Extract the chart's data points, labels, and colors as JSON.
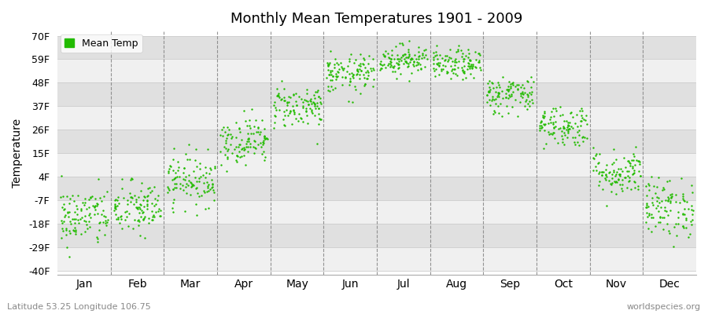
{
  "title": "Monthly Mean Temperatures 1901 - 2009",
  "ylabel": "Temperature",
  "xlabel_bottom_left": "Latitude 53.25 Longitude 106.75",
  "xlabel_bottom_right": "worldspecies.org",
  "legend_label": "Mean Temp",
  "dot_color": "#22bb00",
  "background_color": "#ffffff",
  "plot_bg_color": "#ffffff",
  "band_color_light": "#f0f0f0",
  "band_color_dark": "#e0e0e0",
  "yticks": [
    -40,
    -29,
    -18,
    -7,
    4,
    15,
    26,
    37,
    48,
    59,
    70
  ],
  "ytick_labels": [
    "-40F",
    "-29F",
    "-18F",
    "-7F",
    "4F",
    "15F",
    "26F",
    "37F",
    "48F",
    "59F",
    "70F"
  ],
  "ylim": [
    -42,
    72
  ],
  "months": [
    "Jan",
    "Feb",
    "Mar",
    "Apr",
    "May",
    "Jun",
    "Jul",
    "Aug",
    "Sep",
    "Oct",
    "Nov",
    "Dec"
  ],
  "n_years": 109,
  "monthly_means_F": [
    -14.8,
    -11.0,
    2.5,
    21.0,
    37.0,
    52.0,
    59.0,
    56.5,
    42.5,
    28.0,
    6.0,
    -10.5
  ],
  "monthly_stds_F": [
    7.0,
    6.5,
    6.0,
    5.5,
    5.0,
    4.5,
    3.5,
    3.5,
    4.5,
    5.0,
    5.5,
    7.0
  ],
  "seed": 42
}
